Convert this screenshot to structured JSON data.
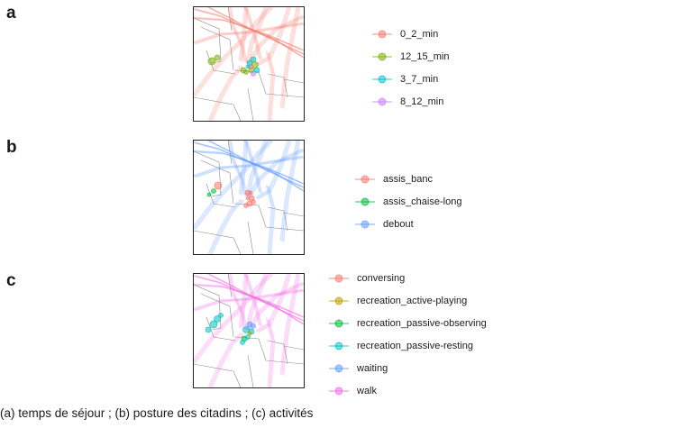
{
  "caption": "(a) temps de séjour ; (b) posture des citadins ; (c) activités",
  "chart_data": [
    {
      "type": "scatter",
      "panel": "a",
      "legend_title": "",
      "legend": [
        {
          "label": "0_2_min",
          "color": "#f8766d"
        },
        {
          "label": "12_15_min",
          "color": "#7cae00"
        },
        {
          "label": "3_7_min",
          "color": "#00bfc4"
        },
        {
          "label": "8_12_min",
          "color": "#c77cff"
        }
      ]
    },
    {
      "type": "scatter",
      "panel": "b",
      "legend_title": "",
      "legend": [
        {
          "label": "assis_banc",
          "color": "#f8766d"
        },
        {
          "label": "assis_chaise-long",
          "color": "#00ba38"
        },
        {
          "label": "debout",
          "color": "#619cff"
        }
      ]
    },
    {
      "type": "scatter",
      "panel": "c",
      "legend_title": "",
      "legend": [
        {
          "label": "conversing",
          "color": "#f8766d"
        },
        {
          "label": "recreation_active-playing",
          "color": "#b79f00"
        },
        {
          "label": "recreation_passive-observing",
          "color": "#00ba38"
        },
        {
          "label": "recreation_passive-resting",
          "color": "#00bfc4"
        },
        {
          "label": "waiting",
          "color": "#619cff"
        },
        {
          "label": "walk",
          "color": "#f564e3"
        }
      ]
    }
  ]
}
